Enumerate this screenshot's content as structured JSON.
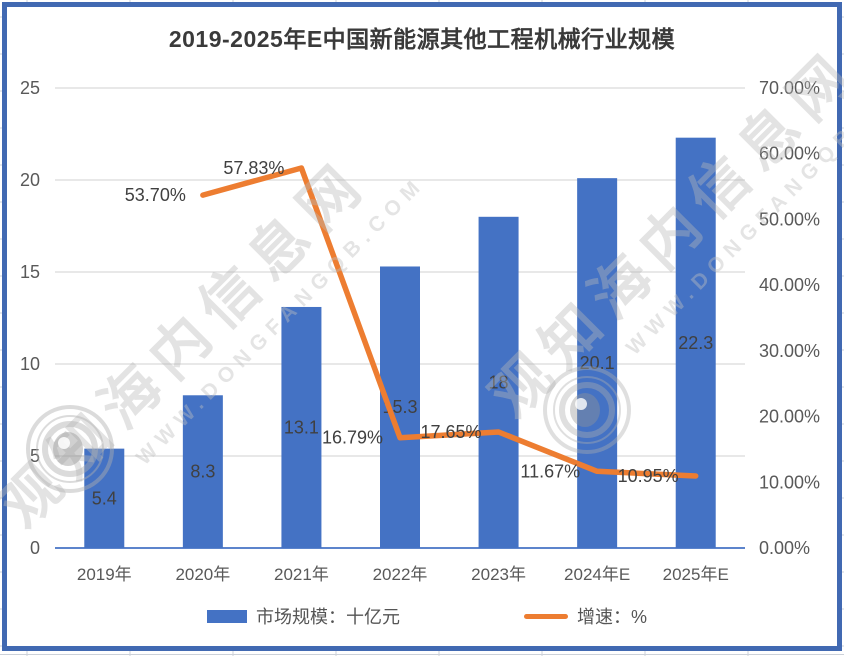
{
  "title": "2019-2025年E中国新能源其他工程机械行业规模",
  "chart_data": {
    "type": "combo-bar-line",
    "title": "2019-2025年E中国新能源其他工程机械行业规模",
    "categories": [
      "2019年",
      "2020年",
      "2021年",
      "2022年",
      "2023年",
      "2024年E",
      "2025年E"
    ],
    "series": [
      {
        "name": "市场规模：十亿元",
        "type": "bar",
        "axis": "left",
        "color": "#4472c4",
        "values": [
          5.4,
          8.3,
          13.1,
          15.3,
          18,
          20.1,
          22.3
        ],
        "data_labels": [
          "5.4",
          "8.3",
          "13.1",
          "15.3",
          "18",
          "20.1",
          "22.3"
        ]
      },
      {
        "name": "增速：%",
        "type": "line",
        "axis": "right",
        "color": "#ed7d31",
        "values": [
          null,
          53.7,
          57.83,
          16.79,
          17.65,
          11.67,
          10.95
        ],
        "data_labels": [
          null,
          "53.70%",
          "57.83%",
          "16.79%",
          "17.65%",
          "11.67%",
          "10.95%"
        ]
      }
    ],
    "left_axis": {
      "min": 0,
      "max": 25,
      "ticks": [
        "0",
        "5",
        "10",
        "15",
        "20",
        "25"
      ]
    },
    "right_axis": {
      "min": 0,
      "max": 70,
      "ticks": [
        "0.00%",
        "10.00%",
        "20.00%",
        "30.00%",
        "40.00%",
        "50.00%",
        "60.00%",
        "70.00%"
      ]
    },
    "grid": "horizontal",
    "legend_position": "bottom"
  },
  "legend": {
    "items": [
      {
        "label": "市场规模：十亿元",
        "swatch": "bar",
        "color": "#4472c4"
      },
      {
        "label": "增速：%",
        "swatch": "line",
        "color": "#ed7d31"
      }
    ]
  },
  "watermark": {
    "site_name": "观知海内信息网",
    "site_url": "WWW.DONGFANGQB.COM"
  },
  "colors": {
    "bar": "#4472c4",
    "line": "#ed7d31",
    "frame_border": "#4169b2",
    "gridline": "#d9d9d9",
    "axis_line": "#4472c4",
    "axis_text": "#595959",
    "data_label_text": "#404040",
    "title_text": "#3a3a3a"
  }
}
